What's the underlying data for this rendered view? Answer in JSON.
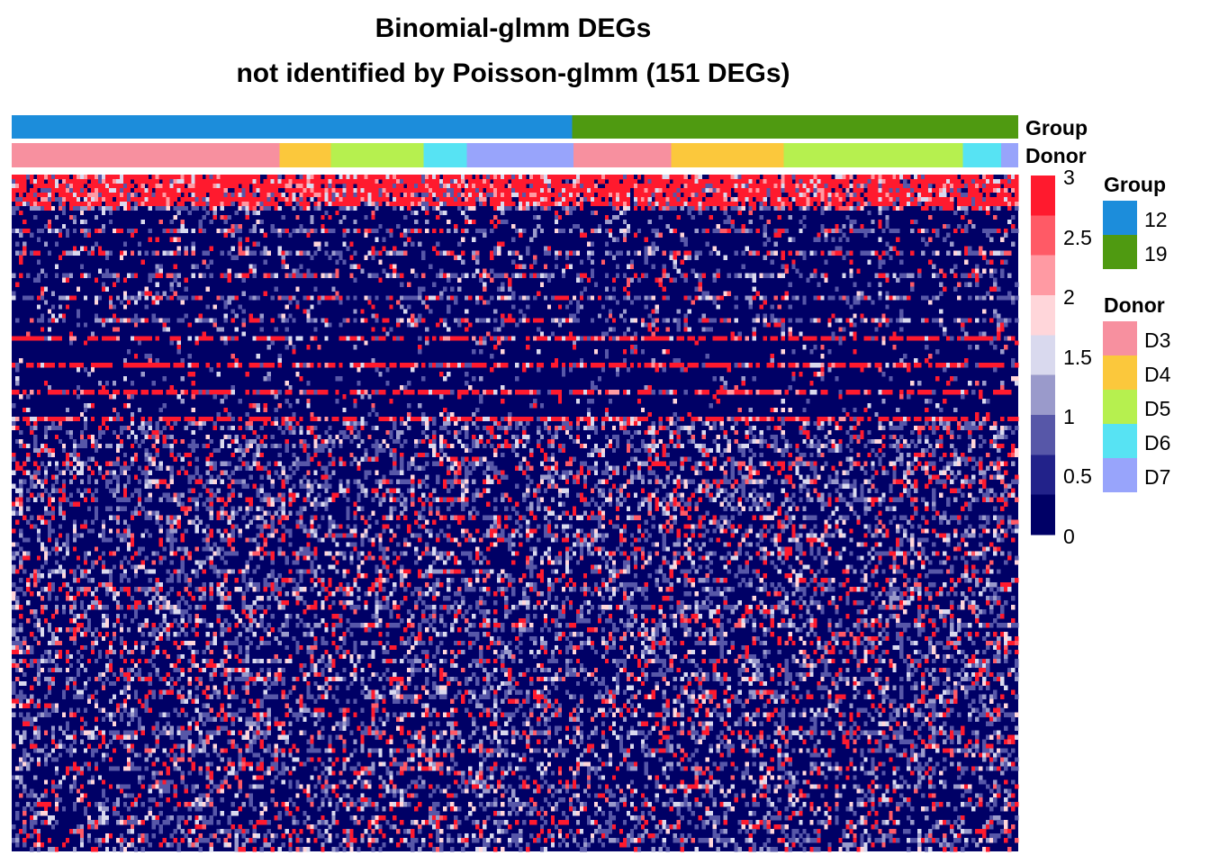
{
  "chart_data": {
    "type": "heatmap",
    "title": "Binomial-glmm DEGs",
    "subtitle": "not identified by Poisson-glmm (151 DEGs)",
    "n_genes": 151,
    "annotation_rows": [
      "Group",
      "Donor"
    ],
    "colorbar": {
      "min": 0,
      "max": 3,
      "ticks": [
        "3",
        "2.5",
        "2",
        "1.5",
        "1",
        "0.5",
        "0"
      ],
      "colors": [
        "#000066",
        "#22228A",
        "#5757A8",
        "#9A9ACB",
        "#D9D9EE",
        "#FFD6DA",
        "#FF9AA3",
        "#FF5A66",
        "#FF1A2E"
      ]
    },
    "legends": {
      "group": {
        "title": "Group",
        "items": [
          {
            "label": "12",
            "color": "#1C8DDB"
          },
          {
            "label": "19",
            "color": "#4F9A11"
          }
        ]
      },
      "donor": {
        "title": "Donor",
        "items": [
          {
            "label": "D3",
            "color": "#F7909F"
          },
          {
            "label": "D4",
            "color": "#FBC83C"
          },
          {
            "label": "D5",
            "color": "#B6F04F"
          },
          {
            "label": "D6",
            "color": "#57E3F3"
          },
          {
            "label": "D7",
            "color": "#98A4FB"
          }
        ]
      }
    },
    "group_bar": [
      {
        "group": "12",
        "fraction": 0.557
      },
      {
        "group": "19",
        "fraction": 0.443
      }
    ],
    "donor_bar": [
      {
        "donor": "D3",
        "fraction": 0.266
      },
      {
        "donor": "D4",
        "fraction": 0.051
      },
      {
        "donor": "D5",
        "fraction": 0.092
      },
      {
        "donor": "D6",
        "fraction": 0.043
      },
      {
        "donor": "D7",
        "fraction": 0.106
      },
      {
        "donor": "D3",
        "fraction": 0.097
      },
      {
        "donor": "D4",
        "fraction": 0.112
      },
      {
        "donor": "D5",
        "fraction": 0.178
      },
      {
        "donor": "D6",
        "fraction": 0.038
      },
      {
        "donor": "D7",
        "fraction": 0.017
      }
    ]
  }
}
